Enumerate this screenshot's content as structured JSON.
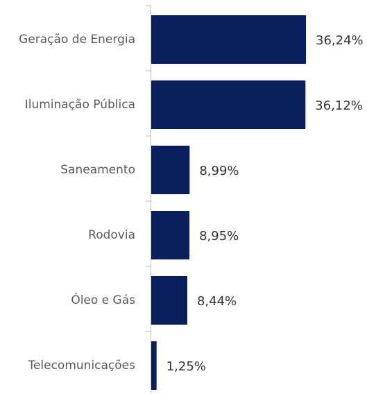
{
  "chart_data": {
    "type": "bar",
    "orientation": "horizontal",
    "categories": [
      "Geração de Energia",
      "Iluminação Pública",
      "Saneamento",
      "Rodovia",
      "Óleo e Gás",
      "Telecomunicações"
    ],
    "values": [
      36.24,
      36.12,
      8.99,
      8.95,
      8.44,
      1.25
    ],
    "value_labels": [
      "36,24%",
      "36,12%",
      "8,99%",
      "8,95%",
      "8,44%",
      "1,25%"
    ],
    "color": "#0a1f5c"
  }
}
